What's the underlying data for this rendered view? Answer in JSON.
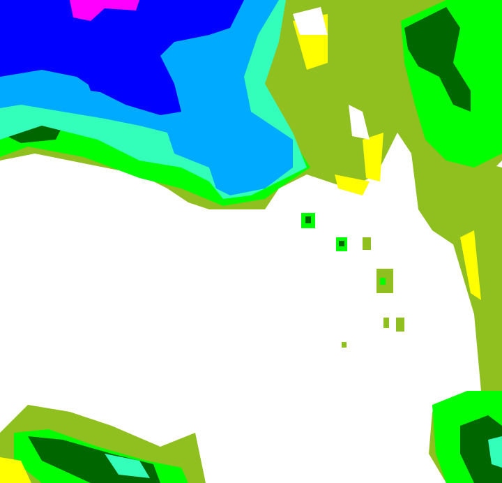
{
  "map": {
    "type": "precipitation-radar-raster",
    "colors": {
      "background": "#ffffff",
      "level_olive": "#90bf20",
      "level_yellow": "#ffff00",
      "level_green": "#00ff00",
      "level_dark_green": "#006600",
      "level_aqua": "#33ffbb",
      "level_light_blue": "#00aaff",
      "level_blue": "#0000ff",
      "level_magenta": "#ff00ff"
    }
  }
}
